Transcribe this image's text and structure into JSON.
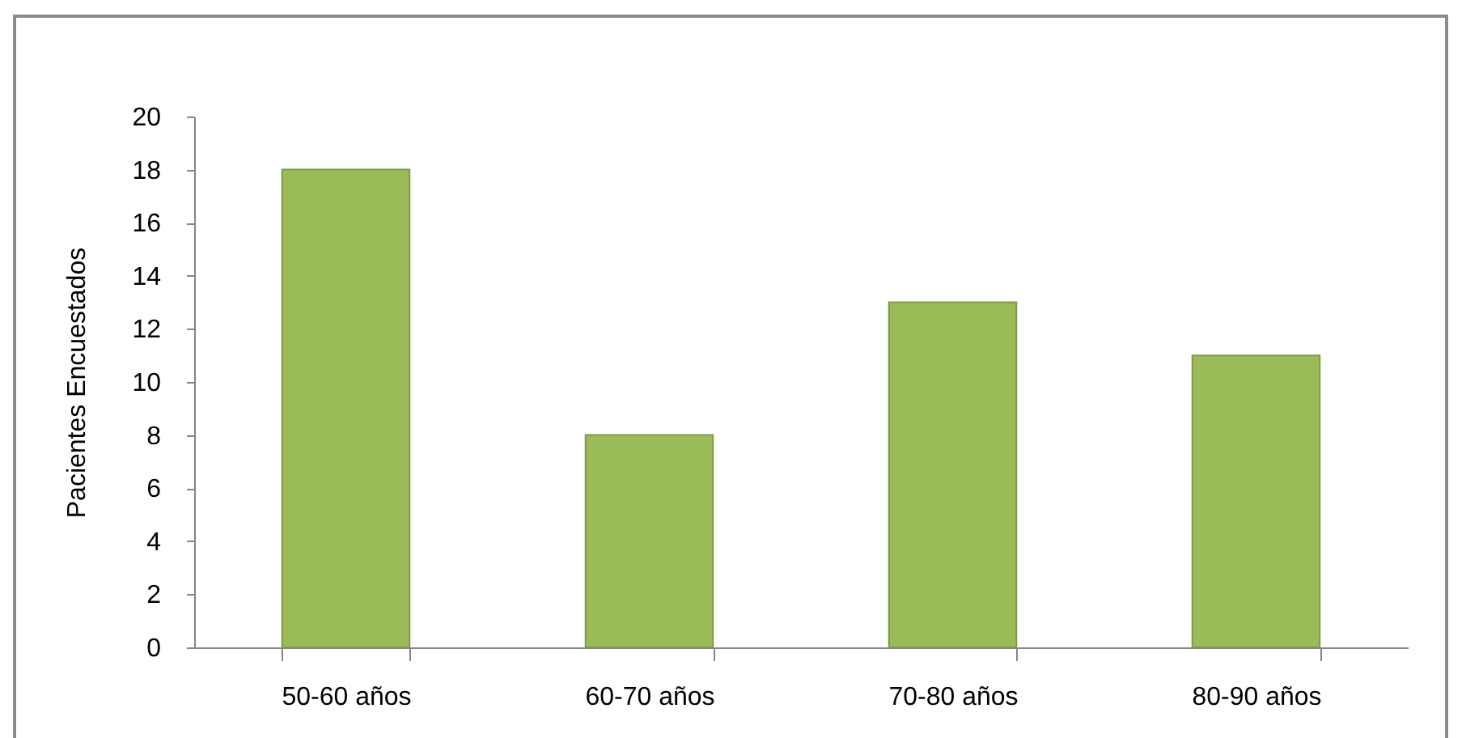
{
  "chart_data": {
    "type": "bar",
    "ylabel": "Pacientes  Encuestados",
    "categories": [
      "50-60 años",
      "60-70 años",
      "70-80 años",
      "80-90 años"
    ],
    "values": [
      18,
      8,
      13,
      11
    ],
    "color": "#9bbb59",
    "ylim": [
      0,
      20
    ],
    "yticks": [
      0,
      2,
      4,
      6,
      8,
      10,
      12,
      14,
      16,
      18,
      20
    ]
  }
}
